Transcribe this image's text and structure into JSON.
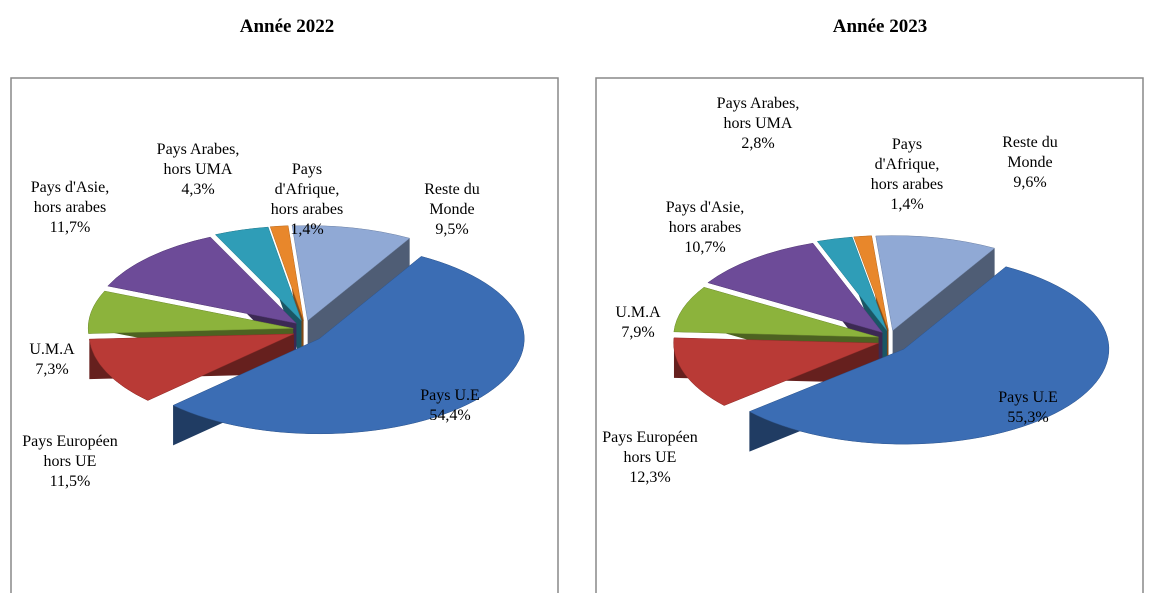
{
  "chart_data": [
    {
      "type": "pie",
      "title": "Année 2022",
      "categories": [
        "Pays U.E",
        "Pays Européen hors UE",
        "U.M.A",
        "Pays d'Asie, hors arabes",
        "Pays Arabes, hors UMA",
        "Pays d'Afrique, hors arabes",
        "Reste du Monde"
      ],
      "values": [
        54.4,
        11.5,
        7.3,
        11.7,
        4.3,
        1.4,
        9.5
      ],
      "value_labels": [
        "54,4%",
        "11,5%",
        "7,3%",
        "11,7%",
        "4,3%",
        "1,4%",
        "9,5%"
      ],
      "colors": [
        "#3b6db4",
        "#b93a36",
        "#8cb33c",
        "#6d4b98",
        "#2f9db7",
        "#e8872b",
        "#90a9d5"
      ]
    },
    {
      "type": "pie",
      "title": "Année 2023",
      "categories": [
        "Pays U.E",
        "Pays Européen hors UE",
        "U.M.A",
        "Pays d'Asie, hors arabes",
        "Pays Arabes, hors UMA",
        "Pays d'Afrique, hors arabes",
        "Reste du Monde"
      ],
      "values": [
        55.3,
        12.3,
        7.9,
        10.7,
        2.8,
        1.4,
        9.6
      ],
      "value_labels": [
        "55,3%",
        "12,3%",
        "7,9%",
        "10,7%",
        "2,8%",
        "1,4%",
        "9,6%"
      ],
      "colors": [
        "#3b6db4",
        "#b93a36",
        "#8cb33c",
        "#6d4b98",
        "#2f9db7",
        "#e8872b",
        "#90a9d5"
      ]
    }
  ]
}
